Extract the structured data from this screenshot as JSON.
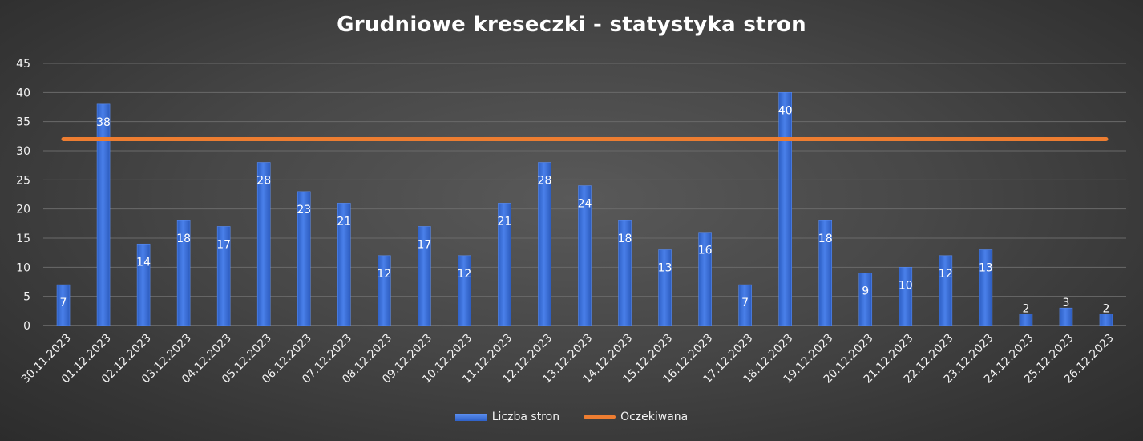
{
  "colors": {
    "bar": "#3a6fd8",
    "line": "#ed7d31",
    "grid": "#6a6a6a",
    "text": "#f2f2f2"
  },
  "chart_data": {
    "type": "bar",
    "title": "Grudniowe kreseczki - statystyka stron",
    "xlabel": "",
    "ylabel": "",
    "ylim": [
      0,
      45
    ],
    "yticks": [
      "0",
      "5",
      "10",
      "15",
      "20",
      "25",
      "30",
      "35",
      "40",
      "45"
    ],
    "grid": true,
    "legend_position": "bottom",
    "categories": [
      "30.11.2023",
      "01.12.2023",
      "02.12.2023",
      "03.12.2023",
      "04.12.2023",
      "05.12.2023",
      "06.12.2023",
      "07.12.2023",
      "08.12.2023",
      "09.12.2023",
      "10.12.2023",
      "11.12.2023",
      "12.12.2023",
      "13.12.2023",
      "14.12.2023",
      "15.12.2023",
      "16.12.2023",
      "17.12.2023",
      "18.12.2023",
      "19.12.2023",
      "20.12.2023",
      "21.12.2023",
      "22.12.2023",
      "23.12.2023",
      "24.12.2023",
      "25.12.2023",
      "26.12.2023"
    ],
    "series": [
      {
        "name": "Liczba stron",
        "type": "bar",
        "values": [
          7,
          38,
          14,
          18,
          17,
          28,
          23,
          21,
          12,
          17,
          12,
          21,
          28,
          24,
          18,
          13,
          16,
          7,
          40,
          18,
          9,
          10,
          12,
          13,
          2,
          3,
          2
        ]
      },
      {
        "name": "Oczekiwana",
        "type": "line",
        "values": [
          32,
          32,
          32,
          32,
          32,
          32,
          32,
          32,
          32,
          32,
          32,
          32,
          32,
          32,
          32,
          32,
          32,
          32,
          32,
          32,
          32,
          32,
          32,
          32,
          32,
          32,
          32
        ]
      }
    ]
  }
}
